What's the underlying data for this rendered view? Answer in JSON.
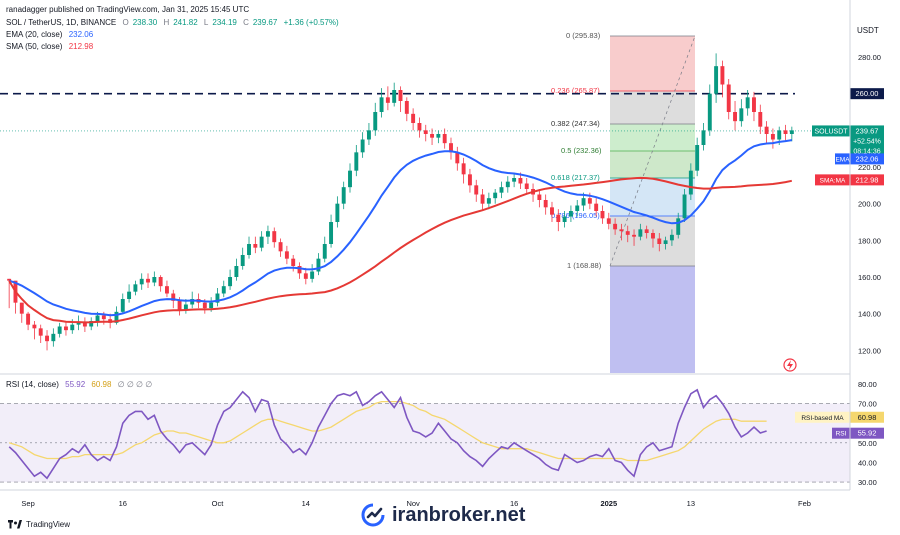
{
  "header": {
    "published": "ranadagger published on TradingView.com, Jan 31, 2025 15:45 UTC",
    "symbol": "SOL / TetherUS, 1D, BINANCE",
    "o_label": "O",
    "o": "238.30",
    "h_label": "H",
    "h": "241.82",
    "l_label": "L",
    "l": "234.19",
    "c_label": "C",
    "c": "239.67",
    "change": "+1.36 (+0.57%)",
    "ema_label": "EMA (20, close)",
    "ema_value": "232.06",
    "sma_label": "SMA (50, close)",
    "sma_value": "212.98"
  },
  "axis": {
    "currency": "USDT"
  },
  "price_tags": {
    "symbol": "SOLUSDT",
    "price": "239.67",
    "pct": "+52.54%",
    "countdown": "08:14:36",
    "ema_label": "EMA",
    "ema": "232.06",
    "sma_label": "SMA:MA",
    "sma": "212.98",
    "level": "260.00"
  },
  "rsi": {
    "label": "RSI (14, close)",
    "value": "55.92",
    "ma_value": "60.98",
    "extra": "∅ ∅ ∅ ∅",
    "tag_ma_label": "RSI-based MA",
    "tag_label": "RSI"
  },
  "footer": {
    "brand": "TradingView"
  },
  "watermark": {
    "text": "iranbroker.net"
  },
  "colors": {
    "up": "#089981",
    "down": "#f23645",
    "ema": "#2962ff",
    "sma": "#f23645",
    "rsi": "#7e57c2",
    "rsi_ma": "#f5d76e",
    "level": "#0c1a4a"
  },
  "chart_data": [
    {
      "type": "candlestick",
      "title": "SOL / TetherUS, 1D, BINANCE",
      "y_axis_ticks": [
        120,
        140,
        160,
        180,
        200,
        220,
        240,
        260,
        280
      ],
      "ylim": [
        112,
        298
      ],
      "x_tick_labels": [
        "Sep",
        "16",
        "Oct",
        "14",
        "Nov",
        "16",
        "2025",
        "13",
        "Feb"
      ],
      "x_tick_index": [
        3,
        18,
        33,
        47,
        64,
        80,
        95,
        108,
        126
      ],
      "resistance_level": 260,
      "candles": [
        [
          159,
          158,
          159,
          143
        ],
        [
          158,
          146,
          153,
          140
        ],
        [
          146,
          140,
          146,
          135
        ],
        [
          140,
          134,
          141,
          131
        ],
        [
          134,
          132,
          136,
          126
        ],
        [
          132,
          128,
          134,
          124
        ],
        [
          128,
          125,
          131,
          120
        ],
        [
          125,
          129,
          132,
          122
        ],
        [
          129,
          133,
          135,
          127
        ],
        [
          133,
          131,
          136,
          128
        ],
        [
          131,
          134,
          137,
          129
        ],
        [
          134,
          135,
          139,
          131
        ],
        [
          135,
          133,
          138,
          130
        ],
        [
          133,
          136,
          138,
          131
        ],
        [
          136,
          139,
          141,
          133
        ],
        [
          139,
          137,
          141,
          134
        ],
        [
          137,
          135,
          140,
          132
        ],
        [
          135,
          141,
          144,
          134
        ],
        [
          141,
          148,
          151,
          140
        ],
        [
          148,
          152,
          156,
          146
        ],
        [
          152,
          156,
          158,
          150
        ],
        [
          156,
          159,
          162,
          153
        ],
        [
          159,
          157,
          162,
          154
        ],
        [
          157,
          160,
          163,
          155
        ],
        [
          160,
          155,
          161,
          152
        ],
        [
          155,
          151,
          158,
          149
        ],
        [
          151,
          147,
          153,
          143
        ],
        [
          147,
          142,
          149,
          139
        ],
        [
          142,
          145,
          148,
          140
        ],
        [
          145,
          148,
          152,
          143
        ],
        [
          148,
          146,
          151,
          143
        ],
        [
          146,
          143,
          148,
          140
        ],
        [
          143,
          146,
          149,
          141
        ],
        [
          146,
          151,
          154,
          144
        ],
        [
          151,
          155,
          158,
          149
        ],
        [
          155,
          160,
          164,
          153
        ],
        [
          160,
          166,
          170,
          158
        ],
        [
          166,
          172,
          176,
          164
        ],
        [
          172,
          178,
          182,
          170
        ],
        [
          178,
          176,
          182,
          173
        ],
        [
          176,
          182,
          185,
          174
        ],
        [
          182,
          185,
          188,
          178
        ],
        [
          185,
          179,
          187,
          176
        ],
        [
          179,
          174,
          181,
          171
        ],
        [
          174,
          170,
          177,
          167
        ],
        [
          170,
          166,
          172,
          163
        ],
        [
          166,
          162,
          168,
          159
        ],
        [
          162,
          159,
          165,
          156
        ],
        [
          159,
          163,
          167,
          157
        ],
        [
          163,
          170,
          173,
          161
        ],
        [
          170,
          178,
          182,
          168
        ],
        [
          178,
          190,
          194,
          176
        ],
        [
          190,
          200,
          204,
          187
        ],
        [
          200,
          209,
          212,
          197
        ],
        [
          209,
          218,
          222,
          206
        ],
        [
          218,
          228,
          232,
          215
        ],
        [
          228,
          235,
          239,
          225
        ],
        [
          235,
          240,
          244,
          232
        ],
        [
          240,
          250,
          255,
          237
        ],
        [
          250,
          258,
          263,
          247
        ],
        [
          258,
          255,
          264,
          251
        ],
        [
          255,
          262,
          266,
          253
        ],
        [
          262,
          256,
          264,
          250
        ],
        [
          256,
          249,
          258,
          245
        ],
        [
          249,
          244,
          252,
          240
        ],
        [
          244,
          240,
          247,
          236
        ],
        [
          240,
          238,
          243,
          234
        ],
        [
          238,
          236,
          241,
          232
        ],
        [
          236,
          238,
          240,
          233
        ],
        [
          238,
          233,
          241,
          230
        ],
        [
          233,
          228,
          236,
          224
        ],
        [
          228,
          222,
          231,
          218
        ],
        [
          222,
          216,
          225,
          211
        ],
        [
          216,
          210,
          219,
          206
        ],
        [
          210,
          205,
          213,
          201
        ],
        [
          205,
          200,
          208,
          196
        ],
        [
          200,
          203,
          206,
          197
        ],
        [
          203,
          206,
          208,
          200
        ],
        [
          206,
          209,
          212,
          203
        ],
        [
          209,
          212,
          215,
          206
        ],
        [
          212,
          214,
          217,
          209
        ],
        [
          214,
          211,
          217,
          208
        ],
        [
          211,
          208,
          214,
          205
        ],
        [
          208,
          205,
          211,
          201
        ],
        [
          205,
          202,
          208,
          198
        ],
        [
          202,
          198,
          205,
          194
        ],
        [
          198,
          194,
          201,
          190
        ],
        [
          194,
          190,
          197,
          185
        ],
        [
          190,
          193,
          196,
          187
        ],
        [
          193,
          196,
          199,
          190
        ],
        [
          196,
          199,
          202,
          193
        ],
        [
          199,
          203,
          206,
          196
        ],
        [
          203,
          200,
          206,
          197
        ],
        [
          200,
          196,
          203,
          193
        ],
        [
          196,
          192,
          199,
          189
        ],
        [
          192,
          189,
          195,
          186
        ],
        [
          189,
          186,
          192,
          183
        ],
        [
          186,
          185,
          189,
          180
        ],
        [
          185,
          183,
          188,
          179
        ],
        [
          183,
          182,
          186,
          177
        ],
        [
          182,
          186,
          189,
          180
        ],
        [
          186,
          184,
          188,
          181
        ],
        [
          184,
          181,
          186,
          176
        ],
        [
          181,
          178,
          184,
          174
        ],
        [
          178,
          180,
          182,
          175
        ],
        [
          180,
          183,
          186,
          177
        ],
        [
          183,
          192,
          195,
          181
        ],
        [
          192,
          205,
          208,
          190
        ],
        [
          205,
          218,
          222,
          202
        ],
        [
          218,
          232,
          236,
          215
        ],
        [
          232,
          240,
          244,
          229
        ],
        [
          240,
          260,
          265,
          237
        ],
        [
          260,
          275,
          282,
          255
        ],
        [
          275,
          265,
          278,
          258
        ],
        [
          265,
          250,
          268,
          246
        ],
        [
          250,
          245,
          256,
          240
        ],
        [
          245,
          252,
          257,
          242
        ],
        [
          252,
          258,
          262,
          248
        ],
        [
          258,
          250,
          261,
          245
        ],
        [
          250,
          242,
          254,
          238
        ],
        [
          242,
          238,
          245,
          233
        ],
        [
          238,
          235,
          241,
          230
        ],
        [
          235,
          240,
          242,
          232
        ],
        [
          240,
          238,
          243,
          234
        ],
        [
          238,
          240,
          242,
          234
        ]
      ]
    },
    {
      "type": "line",
      "title": "RSI (14, close)",
      "y_axis_ticks": [
        30,
        40,
        50,
        60,
        70,
        80
      ],
      "ylim": [
        27,
        83
      ],
      "band": [
        30,
        70
      ],
      "series": [
        {
          "name": "RSI",
          "values": [
            48,
            45,
            41,
            37,
            33,
            35,
            32,
            37,
            42,
            44,
            47,
            45,
            49,
            44,
            41,
            43,
            41,
            48,
            60,
            64,
            66,
            66,
            62,
            64,
            56,
            52,
            49,
            45,
            49,
            50,
            47,
            44,
            49,
            59,
            66,
            68,
            72,
            76,
            73,
            66,
            72,
            71,
            59,
            52,
            49,
            45,
            47,
            44,
            50,
            58,
            64,
            70,
            74,
            75,
            74,
            76,
            69,
            71,
            74,
            76,
            72,
            68,
            73,
            63,
            56,
            55,
            53,
            55,
            60,
            56,
            52,
            50,
            46,
            43,
            41,
            38,
            42,
            45,
            48,
            47,
            50,
            48,
            46,
            44,
            42,
            39,
            37,
            36,
            44,
            42,
            40,
            41,
            43,
            44,
            43,
            47,
            41,
            40,
            36,
            33,
            44,
            48,
            50,
            46,
            47,
            48,
            60,
            68,
            75,
            77,
            68,
            72,
            74,
            70,
            65,
            58,
            53,
            55,
            58,
            55,
            56
          ]
        },
        {
          "name": "RSI-based MA",
          "values": [
            50,
            49,
            48,
            46,
            44,
            43,
            42,
            42,
            42,
            42,
            43,
            43,
            44,
            44,
            44,
            44,
            44,
            44,
            45,
            47,
            49,
            50,
            52,
            54,
            55,
            56,
            56,
            55,
            55,
            54,
            53,
            52,
            51,
            50,
            50,
            51,
            53,
            55,
            57,
            59,
            61,
            62,
            62,
            61,
            60,
            59,
            58,
            57,
            56,
            56,
            57,
            58,
            60,
            62,
            64,
            66,
            67,
            68,
            70,
            71,
            71,
            71,
            71,
            70,
            69,
            67,
            66,
            64,
            63,
            62,
            60,
            58,
            56,
            54,
            52,
            50,
            49,
            48,
            47,
            47,
            47,
            47,
            47,
            46,
            45,
            44,
            43,
            42,
            42,
            42,
            42,
            42,
            42,
            42,
            42,
            42,
            42,
            42,
            41,
            41,
            41,
            41,
            42,
            43,
            44,
            45,
            46,
            48,
            51,
            54,
            57,
            59,
            61,
            62,
            62,
            62,
            61,
            61,
            61,
            61,
            61
          ]
        }
      ]
    }
  ]
}
